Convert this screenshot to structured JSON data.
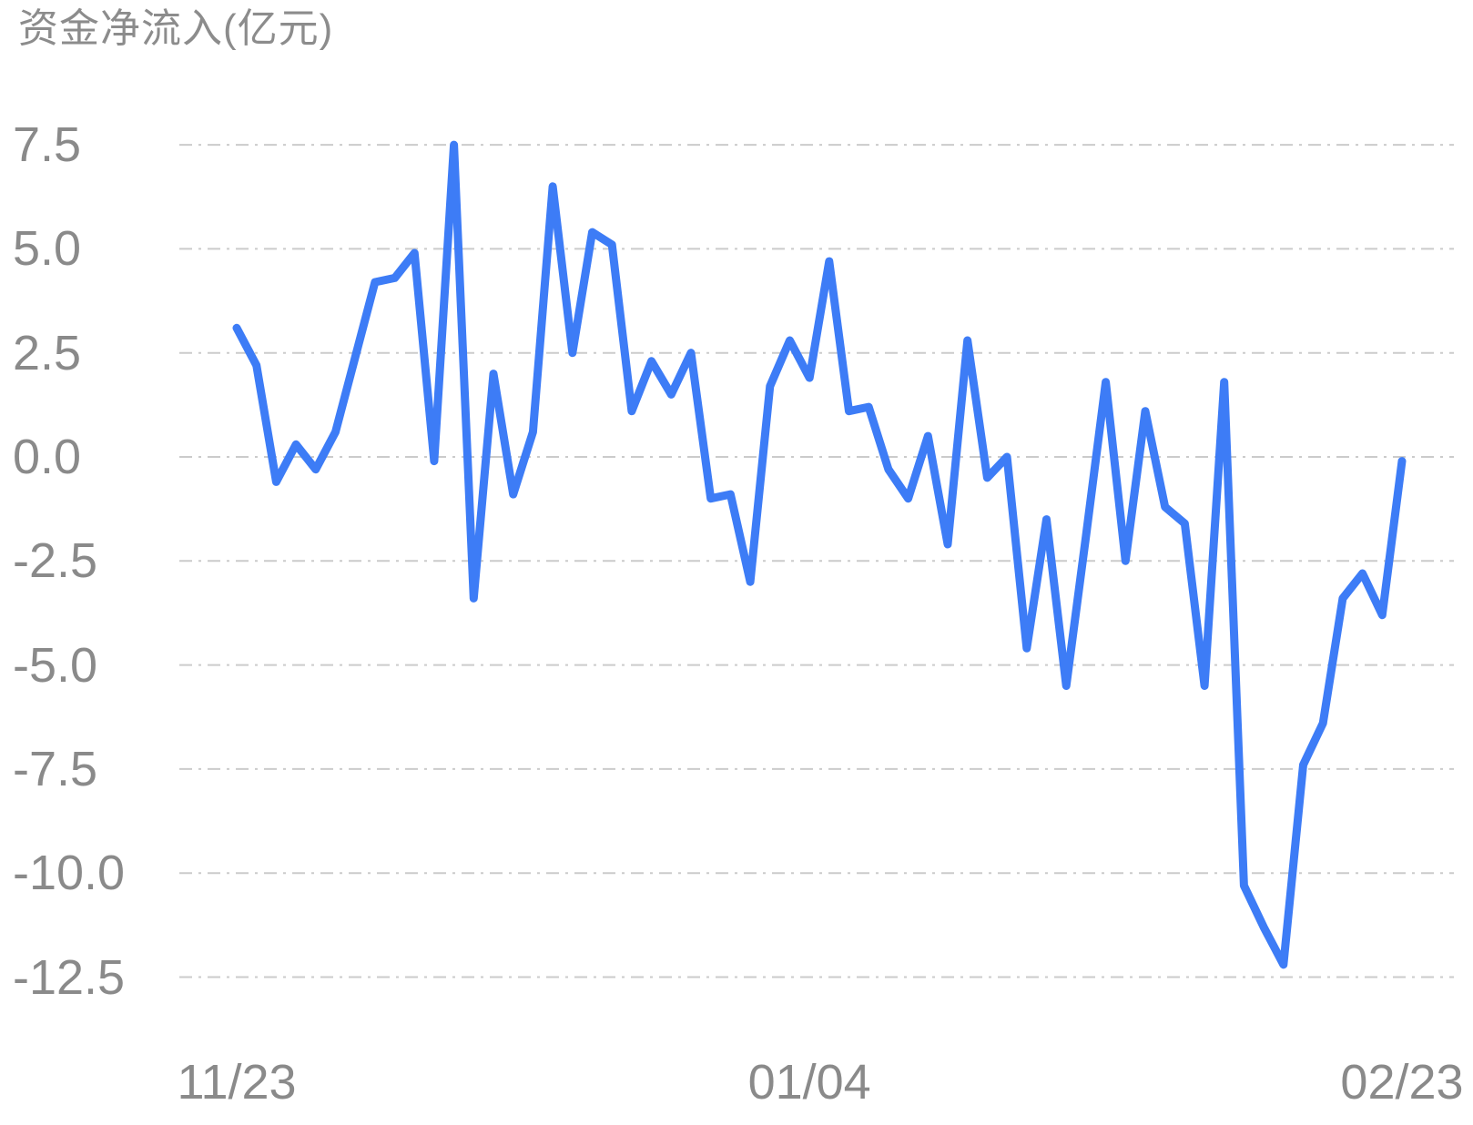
{
  "chart_data": {
    "type": "line",
    "title": "资金净流入(亿元)",
    "ylabel": "资金净流入",
    "unit": "亿元",
    "legend": "none",
    "grid": "horizontal-dash-dot",
    "ylim": [
      -13.2,
      8.1
    ],
    "y_ticks": [
      "7.5",
      "5.0",
      "2.5",
      "0.0",
      "-2.5",
      "-5.0",
      "-7.5",
      "-10.0",
      "-12.5"
    ],
    "x_ticks": [
      {
        "label": "11/23",
        "point_index": 0
      },
      {
        "label": "01/04",
        "point_index": 29
      },
      {
        "label": "02/23",
        "point_index": 59
      }
    ],
    "series": [
      {
        "name": "资金净流入",
        "values": [
          3.1,
          2.2,
          -0.6,
          0.3,
          -0.3,
          0.6,
          2.4,
          4.2,
          4.3,
          4.9,
          -0.1,
          7.5,
          -3.4,
          2.0,
          -0.9,
          0.6,
          6.5,
          2.5,
          5.4,
          5.1,
          1.1,
          2.3,
          1.5,
          2.5,
          -1.0,
          -0.9,
          -3.0,
          1.7,
          2.8,
          1.9,
          4.7,
          1.1,
          1.2,
          -0.3,
          -1.0,
          0.5,
          -2.1,
          2.8,
          -0.5,
          0.0,
          -4.6,
          -1.5,
          -5.5,
          -1.9,
          1.8,
          -2.5,
          1.1,
          -1.2,
          -1.6,
          -5.5,
          1.8,
          -10.3,
          -11.3,
          -12.2,
          -7.4,
          -6.4,
          -3.4,
          -2.8,
          -3.8,
          -0.1
        ]
      }
    ],
    "colors": {
      "line": "#3D7CF6",
      "grid": "#CBCBCB",
      "text": "#8A8A8A",
      "title_text": "#8C8C8C",
      "background": "#FFFFFF"
    }
  }
}
